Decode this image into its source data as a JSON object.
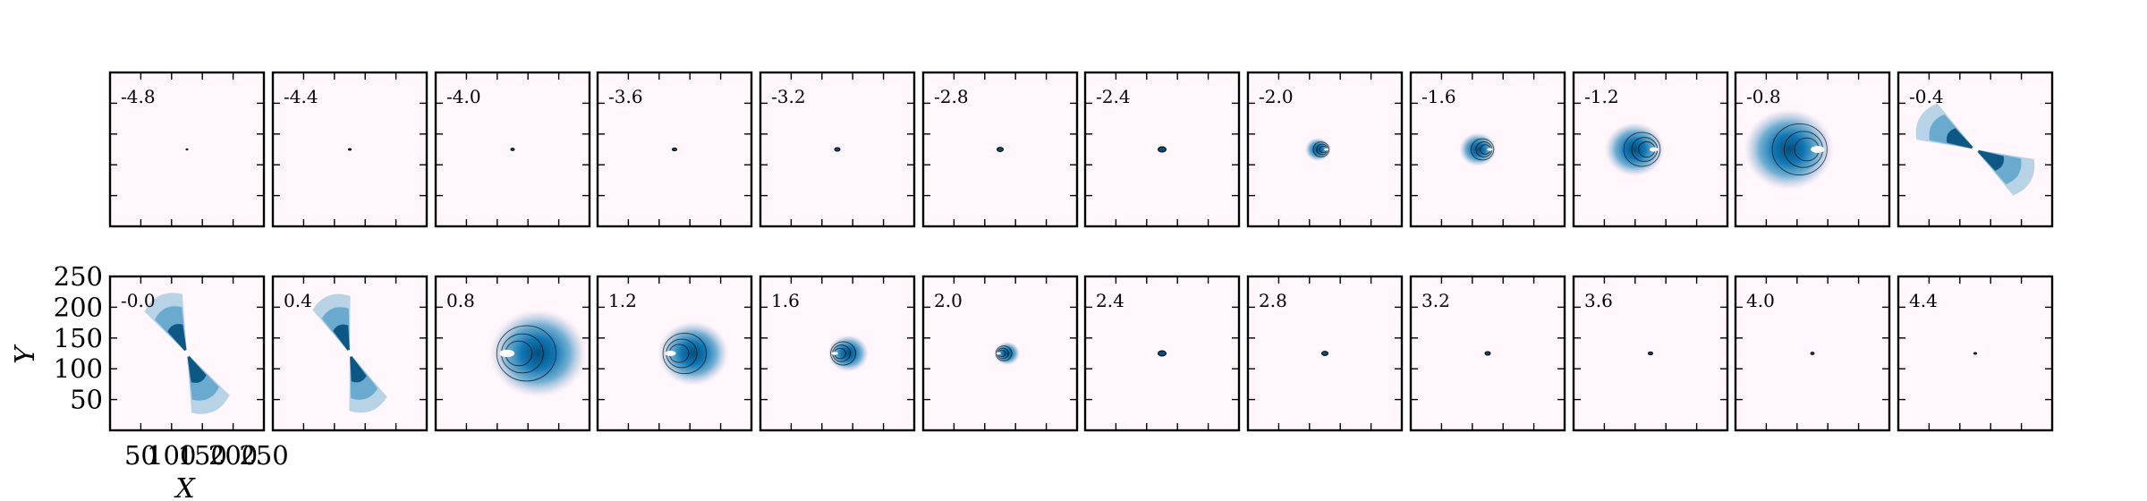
{
  "figure": {
    "panel_colors": {
      "background": "#fff7fb",
      "fill_dark": "#034e7b",
      "fill_mid": "#3690c0",
      "fill_light": "#a6bddb",
      "outline": "#000000"
    }
  },
  "chart_data": {
    "type": "heatmap",
    "grid": {
      "rows": 2,
      "cols": 12
    },
    "xlabel": "X",
    "ylabel": "Y",
    "xlim": [
      0,
      250
    ],
    "ylim": [
      0,
      250
    ],
    "xticks": [
      50,
      100,
      150,
      200,
      250
    ],
    "yticks": [
      50,
      100,
      150,
      200,
      250
    ],
    "center": [
      125,
      125
    ],
    "panels": [
      {
        "label": "-4.8",
        "shape": "dot",
        "size": 2,
        "angle": 0
      },
      {
        "label": "-4.4",
        "shape": "dot",
        "size": 3,
        "angle": 0
      },
      {
        "label": "-4.0",
        "shape": "dot",
        "size": 4,
        "angle": 0
      },
      {
        "label": "-3.6",
        "shape": "dot",
        "size": 5,
        "angle": 0
      },
      {
        "label": "-3.2",
        "shape": "dot",
        "size": 6,
        "angle": 0
      },
      {
        "label": "-2.8",
        "shape": "dot",
        "size": 7,
        "angle": 0
      },
      {
        "label": "-2.4",
        "shape": "dot",
        "size": 9,
        "angle": 0
      },
      {
        "label": "-2.0",
        "shape": "blob",
        "size": 14,
        "angle": 180
      },
      {
        "label": "-1.6",
        "shape": "blob",
        "size": 20,
        "angle": 180
      },
      {
        "label": "-1.2",
        "shape": "blob",
        "size": 32,
        "angle": 180
      },
      {
        "label": "-0.8",
        "shape": "blob",
        "size": 48,
        "angle": 180
      },
      {
        "label": "-0.4",
        "shape": "lobes",
        "size": 52,
        "angle": 210
      },
      {
        "label": "-0.0",
        "shape": "lobes",
        "size": 52,
        "angle": 245
      },
      {
        "label": "0.4",
        "shape": "lobes",
        "size": 50,
        "angle": 250
      },
      {
        "label": "0.8",
        "shape": "blob",
        "size": 52,
        "angle": 0
      },
      {
        "label": "1.2",
        "shape": "blob",
        "size": 38,
        "angle": 0
      },
      {
        "label": "1.6",
        "shape": "blob",
        "size": 22,
        "angle": 0
      },
      {
        "label": "2.0",
        "shape": "blob",
        "size": 14,
        "angle": 0
      },
      {
        "label": "2.4",
        "shape": "dot",
        "size": 9,
        "angle": 0
      },
      {
        "label": "2.8",
        "shape": "dot",
        "size": 7,
        "angle": 0
      },
      {
        "label": "3.2",
        "shape": "dot",
        "size": 6,
        "angle": 0
      },
      {
        "label": "3.6",
        "shape": "dot",
        "size": 5,
        "angle": 0
      },
      {
        "label": "4.0",
        "shape": "dot",
        "size": 4,
        "angle": 0
      },
      {
        "label": "4.4",
        "shape": "dot",
        "size": 3,
        "angle": 0
      }
    ]
  }
}
